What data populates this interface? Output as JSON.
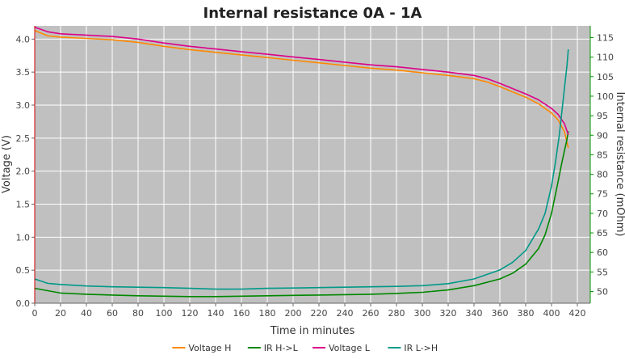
{
  "chart_data": {
    "type": "line",
    "title": "Internal resistance  0A - 1A",
    "xlabel": "Time in minutes",
    "ylabel_left": "Voltage (V)",
    "ylabel_right": "Internal resistance (mOhm)",
    "xlim": [
      0,
      430
    ],
    "ylim_left": [
      0,
      4.2
    ],
    "ylim_right": [
      47,
      118
    ],
    "x_ticks": [
      0,
      20,
      40,
      60,
      80,
      100,
      120,
      140,
      160,
      180,
      200,
      220,
      240,
      260,
      280,
      300,
      320,
      340,
      360,
      380,
      400,
      420
    ],
    "y_ticks_left": [
      "0.0",
      "0.5",
      "1.0",
      "1.5",
      "2.0",
      "2.5",
      "3.0",
      "3.5",
      "4.0"
    ],
    "y_ticks_right": [
      50,
      55,
      60,
      65,
      70,
      75,
      80,
      85,
      90,
      95,
      100,
      105,
      110,
      115
    ],
    "grid": true,
    "legend_position": "bottom",
    "plot_bg": "#c0c0c0",
    "grid_color": "#ffffff",
    "left_axis_color": "#cc0000",
    "right_axis_color": "#009900",
    "series": [
      {
        "name": "Voltage H",
        "axis": "left",
        "color": "#ff8800",
        "x": [
          0,
          10,
          20,
          40,
          60,
          80,
          100,
          120,
          140,
          160,
          180,
          200,
          220,
          240,
          260,
          280,
          300,
          320,
          340,
          350,
          360,
          370,
          380,
          390,
          400,
          405,
          410,
          413
        ],
        "y": [
          4.13,
          4.05,
          4.03,
          4.01,
          3.99,
          3.95,
          3.89,
          3.84,
          3.8,
          3.76,
          3.72,
          3.68,
          3.64,
          3.6,
          3.56,
          3.53,
          3.49,
          3.45,
          3.4,
          3.35,
          3.28,
          3.2,
          3.12,
          3.02,
          2.88,
          2.78,
          2.6,
          2.35
        ]
      },
      {
        "name": "IR H->L",
        "axis": "right",
        "color": "#008800",
        "x": [
          0,
          20,
          40,
          60,
          80,
          100,
          120,
          140,
          160,
          180,
          200,
          220,
          240,
          260,
          280,
          300,
          320,
          340,
          360,
          370,
          380,
          390,
          395,
          400,
          405,
          408,
          410,
          412,
          413
        ],
        "y": [
          50.8,
          49.6,
          49.3,
          49.1,
          48.9,
          48.8,
          48.7,
          48.7,
          48.8,
          48.9,
          49.0,
          49.1,
          49.2,
          49.3,
          49.5,
          49.8,
          50.4,
          51.5,
          53.2,
          54.7,
          57.0,
          61.0,
          64.5,
          70.0,
          78.0,
          83.0,
          86.0,
          89.0,
          91.0
        ]
      },
      {
        "name": "Voltage L",
        "axis": "left",
        "color": "#dd0088",
        "x": [
          0,
          10,
          20,
          40,
          60,
          80,
          100,
          120,
          140,
          160,
          180,
          200,
          220,
          240,
          260,
          280,
          300,
          320,
          340,
          350,
          360,
          370,
          380,
          390,
          400,
          405,
          410,
          413
        ],
        "y": [
          4.18,
          4.11,
          4.08,
          4.06,
          4.04,
          4.0,
          3.94,
          3.89,
          3.85,
          3.81,
          3.77,
          3.73,
          3.69,
          3.65,
          3.61,
          3.58,
          3.54,
          3.5,
          3.45,
          3.4,
          3.33,
          3.25,
          3.17,
          3.08,
          2.95,
          2.86,
          2.72,
          2.55
        ]
      },
      {
        "name": "IR L->H",
        "axis": "right",
        "color": "#009988",
        "x": [
          0,
          10,
          20,
          40,
          60,
          80,
          100,
          120,
          140,
          160,
          180,
          200,
          220,
          240,
          260,
          280,
          300,
          320,
          340,
          360,
          370,
          380,
          390,
          395,
          400,
          403,
          406,
          408,
          410,
          412,
          413
        ],
        "y": [
          53.2,
          52.1,
          51.8,
          51.4,
          51.2,
          51.1,
          51.0,
          50.8,
          50.6,
          50.6,
          50.8,
          50.9,
          51.0,
          51.1,
          51.2,
          51.3,
          51.5,
          52.0,
          53.2,
          55.5,
          57.5,
          60.5,
          66.0,
          70.0,
          77.0,
          83.0,
          90.0,
          96.0,
          102.0,
          108.0,
          112.0
        ]
      }
    ]
  }
}
